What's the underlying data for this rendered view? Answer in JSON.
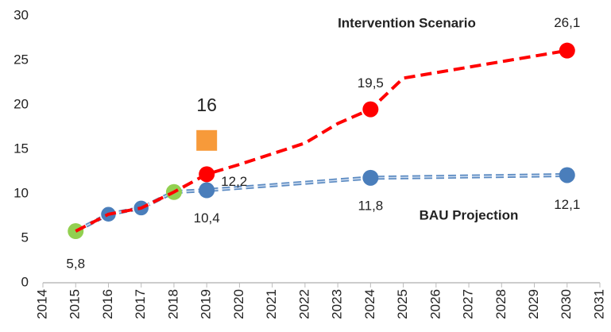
{
  "chart_data": {
    "type": "line",
    "xlim": [
      2014,
      2031
    ],
    "xticks": [
      2014,
      2015,
      2016,
      2017,
      2018,
      2019,
      2020,
      2021,
      2022,
      2023,
      2024,
      2025,
      2026,
      2027,
      2028,
      2029,
      2030,
      2031
    ],
    "ylim": [
      0,
      30
    ],
    "yticks": [
      0,
      5,
      10,
      15,
      20,
      25,
      30
    ],
    "grid": false,
    "series": [
      {
        "name": "BAU Projection",
        "color": "#4a7ebb",
        "x": [
          2015,
          2016,
          2017,
          2018,
          2019,
          2024,
          2030
        ],
        "values": [
          5.8,
          7.7,
          8.4,
          10.2,
          10.4,
          11.8,
          12.1
        ],
        "value_labels": [
          null,
          null,
          null,
          null,
          "10,4",
          "11,8",
          "12,1"
        ],
        "marker_colors": [
          "#92d050",
          "#4a7ebb",
          "#4a7ebb",
          "#92d050",
          "#4a7ebb",
          "#4a7ebb",
          "#4a7ebb"
        ]
      },
      {
        "name": "Intervention Scenario",
        "color": "#ff0000",
        "x": [
          2015,
          2016,
          2017,
          2018,
          2019,
          2020,
          2021,
          2022,
          2023,
          2024,
          2025,
          2030
        ],
        "values": [
          5.8,
          7.7,
          8.4,
          10.2,
          12.2,
          13.3,
          14.5,
          15.7,
          17.9,
          19.5,
          23,
          26.1
        ],
        "value_labels": [
          "5,8",
          null,
          null,
          null,
          "12,2",
          null,
          null,
          null,
          null,
          "19,5",
          null,
          "26,1"
        ],
        "marker_colors": [
          null,
          null,
          null,
          null,
          "#ff0000",
          null,
          null,
          null,
          null,
          "#ff0000",
          null,
          "#ff0000"
        ]
      }
    ],
    "point": {
      "x": 2019,
      "value": 16,
      "color": "#f79a3a"
    }
  }
}
